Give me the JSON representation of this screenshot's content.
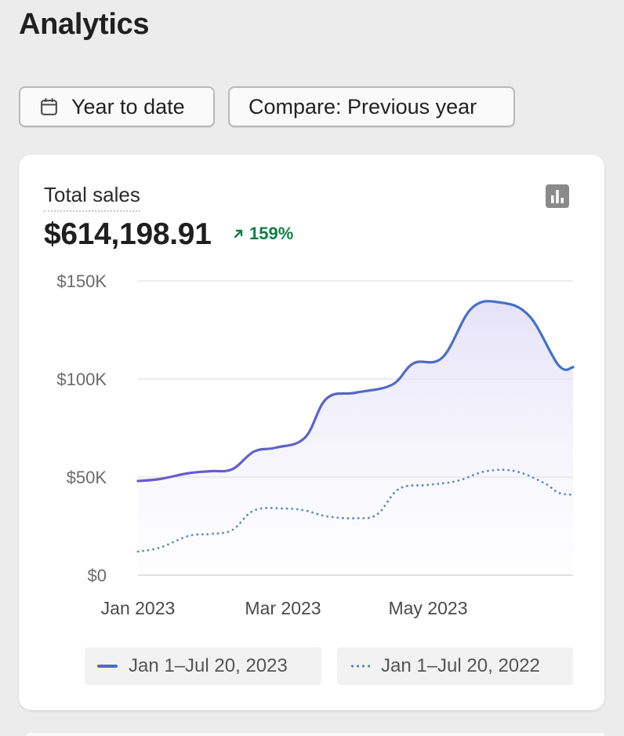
{
  "page": {
    "title": "Analytics"
  },
  "filters": {
    "date_range_label": "Year to date",
    "compare_label": "Compare: Previous year"
  },
  "card": {
    "metric_label": "Total sales",
    "metric_value": "$614,198.91",
    "metric_change": "159%",
    "change_color": "#108043",
    "toggle_icon": "bar-chart-icon"
  },
  "chart_data": {
    "type": "line",
    "title": "Total sales",
    "y_ticks": [
      {
        "value": 150000,
        "label": "$150K"
      },
      {
        "value": 100000,
        "label": "$100K"
      },
      {
        "value": 50000,
        "label": "$50K"
      },
      {
        "value": 0,
        "label": "$0"
      }
    ],
    "x_ticks": [
      {
        "value": 0,
        "label": "Jan 2023"
      },
      {
        "value": 2,
        "label": "Mar 2023"
      },
      {
        "value": 4,
        "label": "May 2023"
      }
    ],
    "ylim": [
      0,
      150000
    ],
    "xlim": [
      0,
      6
    ],
    "grid": true,
    "series": [
      {
        "name": "Jan 1–Jul 20, 2023",
        "style": "solid",
        "color": "#4a6fcc",
        "x": [
          0,
          0.3,
          0.7,
          1.0,
          1.3,
          1.6,
          1.9,
          2.3,
          2.6,
          3.0,
          3.5,
          3.8,
          4.2,
          4.6,
          5.0,
          5.4,
          5.8,
          6.0
        ],
        "y": [
          48000,
          49000,
          52000,
          53000,
          54000,
          63000,
          65000,
          70000,
          90000,
          93000,
          97000,
          108000,
          111000,
          136000,
          139000,
          132000,
          107000,
          106000
        ]
      },
      {
        "name": "Jan 1–Jul 20, 2022",
        "style": "dotted",
        "color": "#5a8bc4",
        "x": [
          0,
          0.3,
          0.7,
          1.0,
          1.3,
          1.6,
          2.0,
          2.3,
          2.6,
          3.0,
          3.3,
          3.6,
          4.0,
          4.4,
          4.8,
          5.2,
          5.6,
          5.8,
          6.0
        ],
        "y": [
          12000,
          14000,
          20000,
          21000,
          23000,
          33000,
          34000,
          33000,
          30000,
          29000,
          31000,
          44000,
          46000,
          48000,
          53000,
          53000,
          47000,
          42000,
          41000
        ]
      }
    ]
  }
}
